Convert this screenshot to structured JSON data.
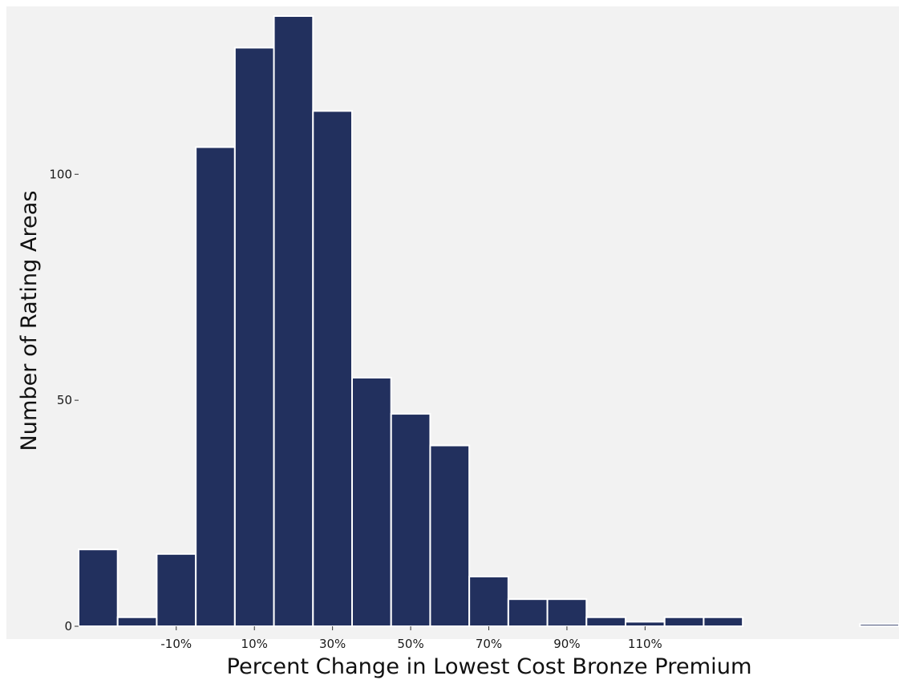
{
  "chart_data": {
    "type": "bar",
    "title": "",
    "xlabel": "Percent Change in Lowest Cost Bronze Premium",
    "ylabel": "Number of Rating Areas",
    "x_unit": "percent change",
    "bin_width": 10,
    "bins": [
      {
        "start": -40,
        "end": -30,
        "count": 17
      },
      {
        "start": -30,
        "end": -20,
        "count": 2
      },
      {
        "start": -20,
        "end": -10,
        "count": 16
      },
      {
        "start": -10,
        "end": 0,
        "count": 106
      },
      {
        "start": 0,
        "end": 10,
        "count": 128
      },
      {
        "start": 10,
        "end": 20,
        "count": 135
      },
      {
        "start": 20,
        "end": 30,
        "count": 114
      },
      {
        "start": 30,
        "end": 40,
        "count": 55
      },
      {
        "start": 40,
        "end": 50,
        "count": 47
      },
      {
        "start": 50,
        "end": 60,
        "count": 40
      },
      {
        "start": 60,
        "end": 70,
        "count": 11
      },
      {
        "start": 70,
        "end": 80,
        "count": 6
      },
      {
        "start": 80,
        "end": 90,
        "count": 6
      },
      {
        "start": 90,
        "end": 100,
        "count": 2
      },
      {
        "start": 100,
        "end": 110,
        "count": 1
      },
      {
        "start": 110,
        "end": 120,
        "count": 2
      },
      {
        "start": 120,
        "end": 130,
        "count": 2
      },
      {
        "start": 130,
        "end": 140,
        "count": 0
      },
      {
        "start": 140,
        "end": 150,
        "count": 0
      },
      {
        "start": 150,
        "end": 160,
        "count": 0
      },
      {
        "start": 160,
        "end": 170,
        "count": 0.5
      }
    ],
    "xlim": [
      -40,
      170
    ],
    "ylim": [
      0,
      135
    ],
    "x_ticks": [
      {
        "value": -15,
        "label": "-10%"
      },
      {
        "value": 5,
        "label": "10%"
      },
      {
        "value": 25,
        "label": "30%"
      },
      {
        "value": 45,
        "label": "50%"
      },
      {
        "value": 65,
        "label": "70%"
      },
      {
        "value": 85,
        "label": "90%"
      },
      {
        "value": 105,
        "label": "110%"
      }
    ],
    "y_ticks": [
      {
        "value": 0,
        "label": "0"
      },
      {
        "value": 50,
        "label": "50"
      },
      {
        "value": 100,
        "label": "100"
      }
    ],
    "grid": false,
    "legend": "none",
    "colors": {
      "panel_background": "#f2f2f2",
      "bar_fill": "#22305e",
      "bar_border": "#ffffff",
      "axis_text": "#1a1a1a"
    }
  }
}
